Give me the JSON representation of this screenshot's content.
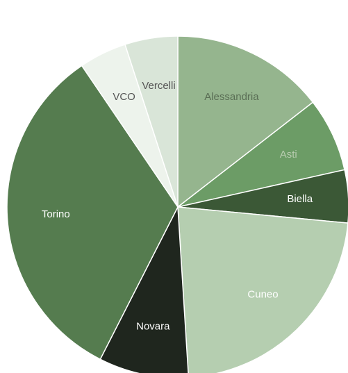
{
  "chart_data": {
    "type": "pie",
    "title": "",
    "start_angle_deg": 0,
    "direction": "clockwise",
    "slices": [
      {
        "label": "Alessandria",
        "value": 14.5,
        "color": "#95b58e",
        "label_color": "#5a6e55"
      },
      {
        "label": "Asti",
        "value": 7.0,
        "color": "#6c9c66",
        "label_color": "#b8ccb0"
      },
      {
        "label": "Biella",
        "value": 5.0,
        "color": "#3b5836",
        "label_color": "#ffffff"
      },
      {
        "label": "Cuneo",
        "value": 22.5,
        "color": "#b5ceb0",
        "label_color": "#ffffff"
      },
      {
        "label": "Novara",
        "value": 8.5,
        "color": "#1f261e",
        "label_color": "#ffffff"
      },
      {
        "label": "Torino",
        "value": 33.0,
        "color": "#557c4f",
        "label_color": "#ffffff"
      },
      {
        "label": "VCO",
        "value": 4.5,
        "color": "#edf3ec",
        "label_color": "#555555"
      },
      {
        "label": "Vercelli",
        "value": 5.0,
        "color": "#d9e5d8",
        "label_color": "#555555"
      }
    ]
  }
}
